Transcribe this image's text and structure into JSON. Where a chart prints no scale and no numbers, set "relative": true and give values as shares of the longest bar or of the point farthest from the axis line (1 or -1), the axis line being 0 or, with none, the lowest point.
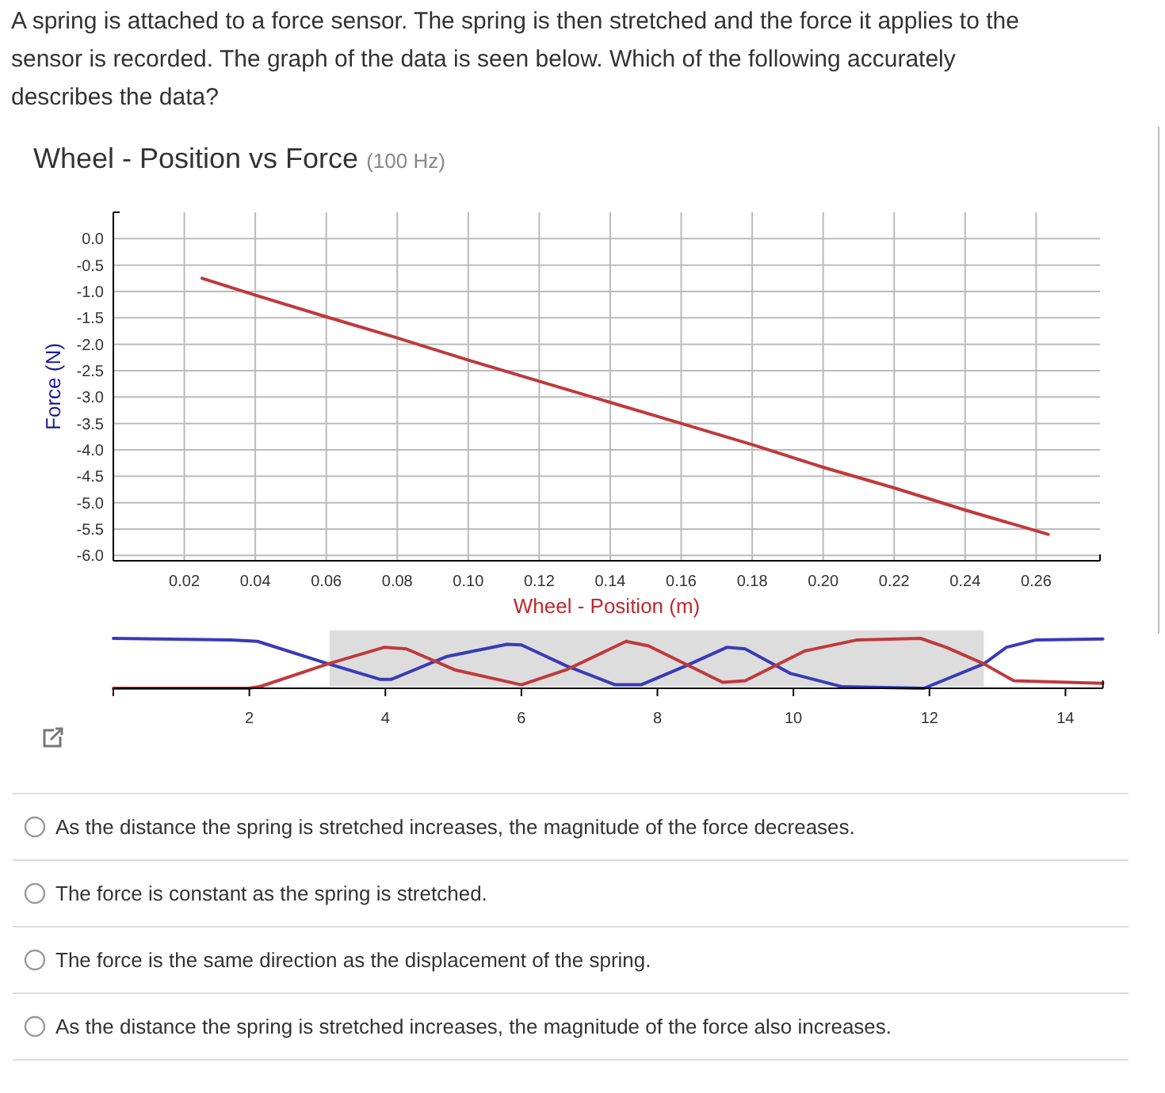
{
  "chart_data": [
    {
      "type": "line",
      "title": "Wheel - Position vs Force",
      "subtitle": "(100 Hz)",
      "xlabel": "Wheel - Position (m)",
      "ylabel": "Force (N)",
      "annotations": [
        "A spring is attached to a force sensor.  The spring is then stretched and the force it applies to the sensor is recorded.  The graph of the data is seen below.  Which of the following accurately describes the data?",
        "As the distance the spring is stretched increases, the magnitude of the force decreases.",
        "The force is constant as the spring is stretched.",
        "The force is the same direction as the displacement of the spring.",
        "As the distance the spring is stretched increases, the magnitude of the force also increases."
      ],
      "series": [
        {
          "color": "#c0393b",
          "x": [
            0.025,
            0.04,
            0.06,
            0.08,
            0.1,
            0.12,
            0.14,
            0.16,
            0.18,
            0.2,
            0.22,
            0.24,
            0.2634
          ],
          "values": [
            -0.75,
            -1.07,
            -1.48,
            -1.88,
            -2.3,
            -2.7,
            -3.1,
            -3.5,
            -3.9,
            -4.33,
            -4.72,
            -5.14,
            -5.6
          ]
        }
      ],
      "xlim": [
        0,
        0.278
      ],
      "xticks": [
        0.02,
        0.04,
        0.06,
        0.08,
        {
          "value": 0.1,
          "label": "0.10"
        },
        0.12,
        0.14,
        0.16,
        0.18,
        {
          "value": 0.2,
          "label": "0.20"
        },
        0.22,
        0.24,
        0.26
      ],
      "ylim": [
        -6.1,
        0.5
      ],
      "yticks": [
        {
          "value": 0,
          "label": "0.0"
        },
        -0.5,
        {
          "value": -1,
          "label": "-1.0"
        },
        -1.5,
        {
          "value": -2,
          "label": "-2.0"
        },
        -2.5,
        {
          "value": -3,
          "label": "-3.0"
        },
        -3.5,
        {
          "value": -4,
          "label": "-4.0"
        },
        -4.5,
        {
          "value": -5,
          "label": "-5.0"
        },
        -5.5,
        {
          "value": -6,
          "label": "-6.0"
        }
      ],
      "grid": true
    },
    {
      "type": "line",
      "relative": true,
      "series": [
        {
          "color": "#3a3ab8",
          "x": [
            0,
            1.73,
            2.12,
            3.16,
            3.92,
            4.09,
            4.91,
            5.79,
            6.0,
            6.66,
            7.38,
            7.76,
            8.42,
            9.02,
            9.29,
            9.95,
            10.72,
            11.92,
            12.8,
            13.13,
            13.57,
            14.55
          ],
          "values": [
            1.0,
            0.97,
            0.94,
            0.49,
            0.18,
            0.18,
            0.64,
            0.88,
            0.87,
            0.45,
            0.07,
            0.07,
            0.45,
            0.82,
            0.79,
            0.3,
            0.03,
            0,
            0.49,
            0.82,
            0.97,
            0.99
          ]
        },
        {
          "color": "#c0393b",
          "x": [
            0,
            2.0,
            2.17,
            3.16,
            3.98,
            4.31,
            5.02,
            6.0,
            6.66,
            7.54,
            7.87,
            8.96,
            9.29,
            10.17,
            10.94,
            11.87,
            12.25,
            12.8,
            13.24,
            14.55
          ],
          "values": [
            0,
            0,
            0.04,
            0.49,
            0.82,
            0.79,
            0.37,
            0.07,
            0.37,
            0.94,
            0.85,
            0.12,
            0.15,
            0.75,
            0.97,
            1.0,
            0.82,
            0.49,
            0.15,
            0.1
          ]
        }
      ],
      "xlim": [
        0,
        14.55
      ],
      "xticks": [
        2,
        4,
        6,
        8,
        10,
        12,
        14
      ],
      "bands": [
        {
          "axis": "x",
          "from": 3.18,
          "to": 12.8,
          "color": "#dddddd"
        }
      ]
    }
  ]
}
